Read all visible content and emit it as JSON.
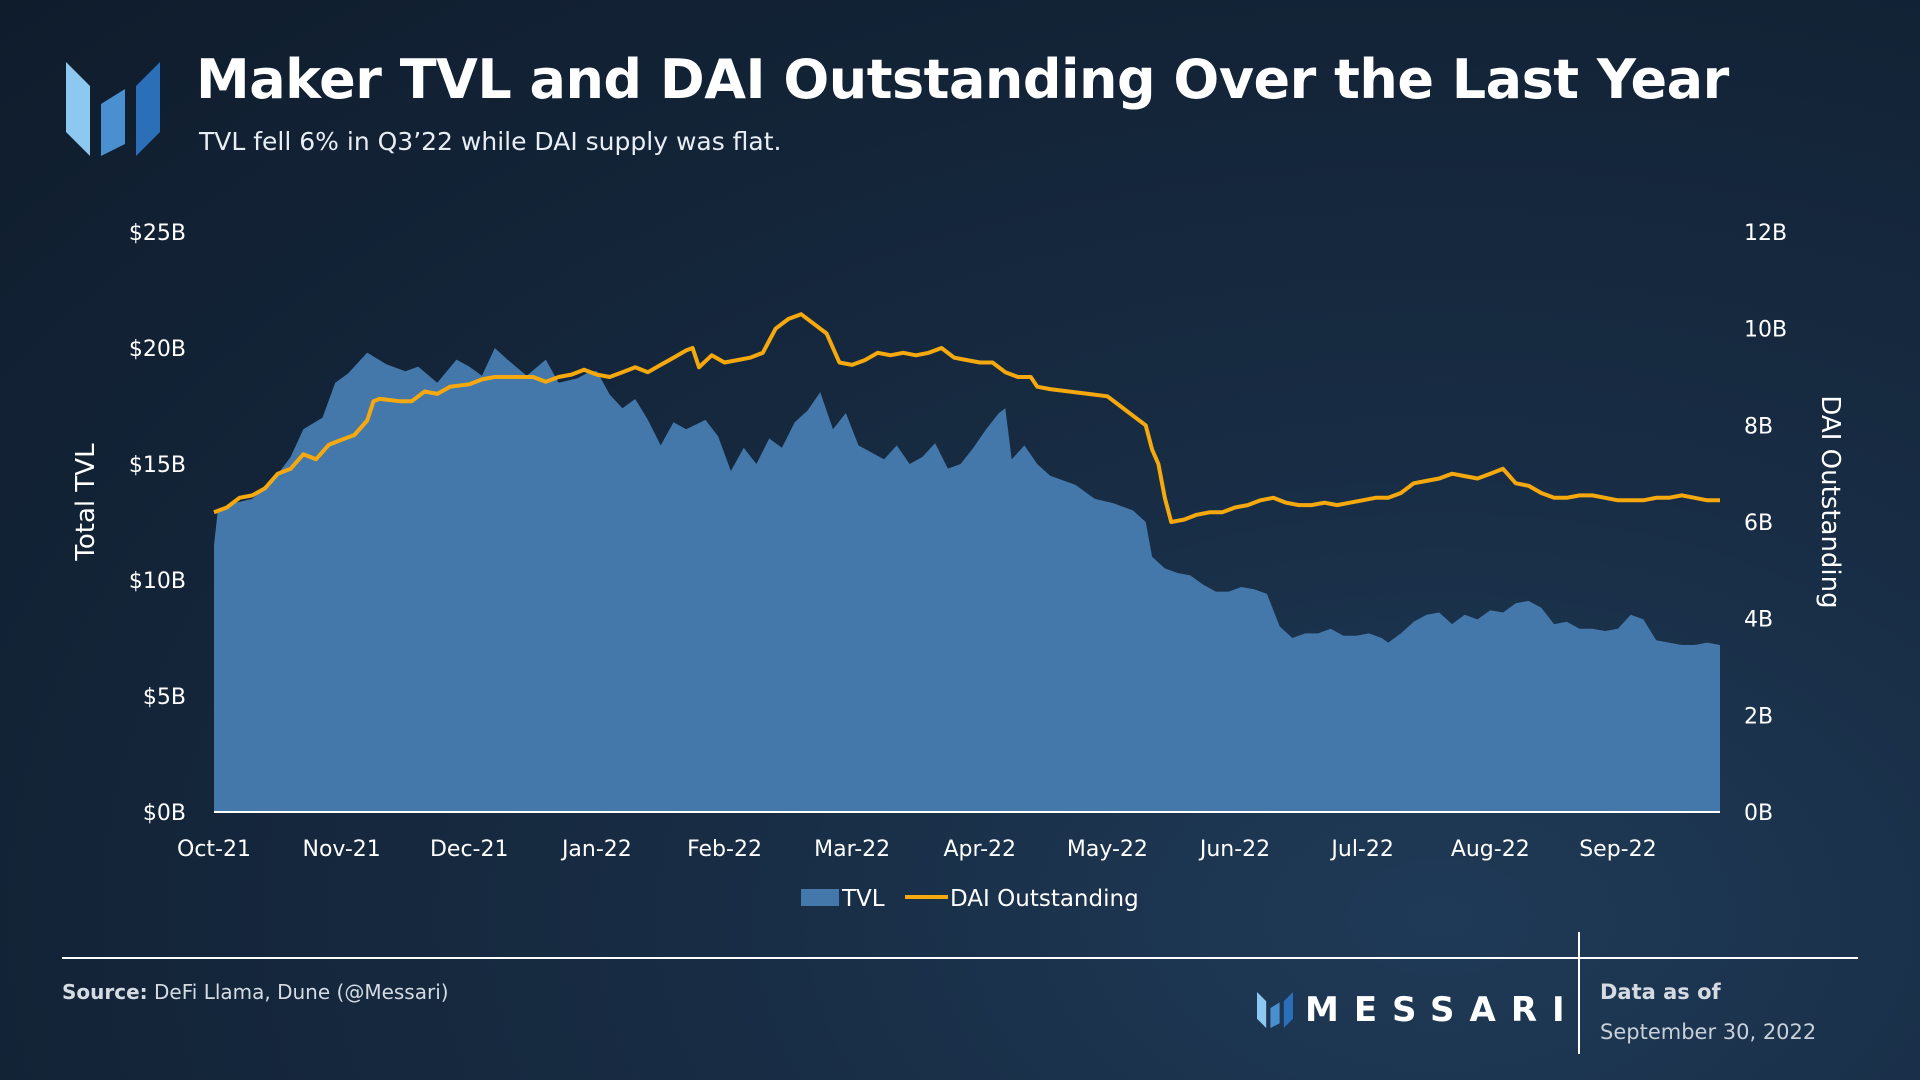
{
  "header": {
    "title": "Maker TVL and DAI Outstanding Over the Last Year",
    "subtitle": "TVL fell 6% in Q3’22 while DAI supply was flat."
  },
  "footer": {
    "source_label": "Source:",
    "source_text": "DeFi Llama, Dune (@Messari)",
    "brand": "MESSARI",
    "as_of_label": "Data as of",
    "as_of_date": "September 30, 2022"
  },
  "colors": {
    "tvl_fill": "#4477aa",
    "dai_line": "#f6a90e",
    "logo_light": "#8cc8f0",
    "logo_mid": "#4a90d0",
    "logo_dark": "#2a6fb8"
  },
  "chart_data": {
    "type": "area+line",
    "x_labels": [
      "Oct-21",
      "Nov-21",
      "Dec-21",
      "Jan-22",
      "Feb-22",
      "Mar-22",
      "Apr-22",
      "May-22",
      "Jun-22",
      "Jul-22",
      "Aug-22",
      "Sep-22"
    ],
    "x_range": [
      0,
      11.8
    ],
    "y_left": {
      "label": "Total TVL",
      "ticks": [
        "$0B",
        "$5B",
        "$10B",
        "$15B",
        "$20B",
        "$25B"
      ],
      "range": [
        0,
        25
      ]
    },
    "y_right": {
      "label": "DAI Outstanding",
      "ticks": [
        "0B",
        "2B",
        "4B",
        "6B",
        "8B",
        "10B",
        "12B"
      ],
      "range": [
        0,
        12
      ]
    },
    "legend": [
      "TVL",
      "DAI Outstanding"
    ],
    "legend_position": "bottom-center",
    "grid": false,
    "series": [
      {
        "name": "TVL",
        "type": "area",
        "axis": "left",
        "unit": "B USD",
        "points": [
          [
            0,
            11.5
          ],
          [
            0.03,
            13
          ],
          [
            0.15,
            13.3
          ],
          [
            0.3,
            13.5
          ],
          [
            0.45,
            14.2
          ],
          [
            0.6,
            15.3
          ],
          [
            0.7,
            16.5
          ],
          [
            0.85,
            17
          ],
          [
            0.95,
            18.5
          ],
          [
            1.05,
            18.9
          ],
          [
            1.2,
            19.8
          ],
          [
            1.35,
            19.3
          ],
          [
            1.5,
            19
          ],
          [
            1.6,
            19.2
          ],
          [
            1.75,
            18.5
          ],
          [
            1.9,
            19.5
          ],
          [
            2.0,
            19.2
          ],
          [
            2.1,
            18.8
          ],
          [
            2.2,
            20
          ],
          [
            2.3,
            19.5
          ],
          [
            2.45,
            18.8
          ],
          [
            2.6,
            19.5
          ],
          [
            2.7,
            18.5
          ],
          [
            2.85,
            18.7
          ],
          [
            2.95,
            19
          ],
          [
            3.0,
            19
          ],
          [
            3.1,
            18
          ],
          [
            3.2,
            17.4
          ],
          [
            3.3,
            17.8
          ],
          [
            3.4,
            16.9
          ],
          [
            3.5,
            15.8
          ],
          [
            3.6,
            16.8
          ],
          [
            3.7,
            16.5
          ],
          [
            3.85,
            16.9
          ],
          [
            3.95,
            16.2
          ],
          [
            4.05,
            14.7
          ],
          [
            4.15,
            15.7
          ],
          [
            4.25,
            15
          ],
          [
            4.35,
            16.1
          ],
          [
            4.45,
            15.7
          ],
          [
            4.55,
            16.8
          ],
          [
            4.65,
            17.3
          ],
          [
            4.75,
            18.1
          ],
          [
            4.85,
            16.5
          ],
          [
            4.95,
            17.2
          ],
          [
            5.05,
            15.8
          ],
          [
            5.15,
            15.5
          ],
          [
            5.25,
            15.2
          ],
          [
            5.35,
            15.8
          ],
          [
            5.45,
            15
          ],
          [
            5.55,
            15.3
          ],
          [
            5.65,
            15.9
          ],
          [
            5.75,
            14.8
          ],
          [
            5.85,
            15
          ],
          [
            5.95,
            15.7
          ],
          [
            6.05,
            16.5
          ],
          [
            6.15,
            17.2
          ],
          [
            6.2,
            17.4
          ],
          [
            6.25,
            15.2
          ],
          [
            6.35,
            15.8
          ],
          [
            6.45,
            15
          ],
          [
            6.55,
            14.5
          ],
          [
            6.65,
            14.3
          ],
          [
            6.75,
            14.1
          ],
          [
            6.9,
            13.5
          ],
          [
            7.05,
            13.3
          ],
          [
            7.2,
            13
          ],
          [
            7.3,
            12.5
          ],
          [
            7.35,
            11
          ],
          [
            7.45,
            10.5
          ],
          [
            7.55,
            10.3
          ],
          [
            7.65,
            10.2
          ],
          [
            7.75,
            9.8
          ],
          [
            7.85,
            9.5
          ],
          [
            7.95,
            9.5
          ],
          [
            8.05,
            9.7
          ],
          [
            8.15,
            9.6
          ],
          [
            8.25,
            9.4
          ],
          [
            8.35,
            8
          ],
          [
            8.45,
            7.5
          ],
          [
            8.55,
            7.7
          ],
          [
            8.65,
            7.7
          ],
          [
            8.75,
            7.9
          ],
          [
            8.85,
            7.6
          ],
          [
            8.95,
            7.6
          ],
          [
            9.05,
            7.7
          ],
          [
            9.15,
            7.5
          ],
          [
            9.2,
            7.3
          ],
          [
            9.3,
            7.7
          ],
          [
            9.4,
            8.2
          ],
          [
            9.5,
            8.5
          ],
          [
            9.6,
            8.6
          ],
          [
            9.7,
            8.1
          ],
          [
            9.8,
            8.5
          ],
          [
            9.9,
            8.3
          ],
          [
            10.0,
            8.7
          ],
          [
            10.1,
            8.6
          ],
          [
            10.2,
            9
          ],
          [
            10.3,
            9.1
          ],
          [
            10.4,
            8.8
          ],
          [
            10.5,
            8.1
          ],
          [
            10.6,
            8.2
          ],
          [
            10.7,
            7.9
          ],
          [
            10.8,
            7.9
          ],
          [
            10.9,
            7.8
          ],
          [
            11.0,
            7.9
          ],
          [
            11.1,
            8.5
          ],
          [
            11.2,
            8.3
          ],
          [
            11.3,
            7.4
          ],
          [
            11.4,
            7.3
          ],
          [
            11.5,
            7.2
          ],
          [
            11.6,
            7.2
          ],
          [
            11.7,
            7.3
          ],
          [
            11.8,
            7.2
          ]
        ]
      },
      {
        "name": "DAI Outstanding",
        "type": "line",
        "axis": "right",
        "unit": "B",
        "points": [
          [
            0,
            6.2
          ],
          [
            0.1,
            6.3
          ],
          [
            0.2,
            6.5
          ],
          [
            0.3,
            6.55
          ],
          [
            0.4,
            6.7
          ],
          [
            0.5,
            7.0
          ],
          [
            0.6,
            7.1
          ],
          [
            0.7,
            7.4
          ],
          [
            0.8,
            7.3
          ],
          [
            0.9,
            7.6
          ],
          [
            1.0,
            7.7
          ],
          [
            1.1,
            7.8
          ],
          [
            1.2,
            8.1
          ],
          [
            1.25,
            8.5
          ],
          [
            1.3,
            8.55
          ],
          [
            1.45,
            8.5
          ],
          [
            1.55,
            8.5
          ],
          [
            1.65,
            8.7
          ],
          [
            1.75,
            8.65
          ],
          [
            1.85,
            8.8
          ],
          [
            2.0,
            8.85
          ],
          [
            2.1,
            8.95
          ],
          [
            2.2,
            9.0
          ],
          [
            2.35,
            9.0
          ],
          [
            2.5,
            9.0
          ],
          [
            2.6,
            8.9
          ],
          [
            2.7,
            9.0
          ],
          [
            2.8,
            9.05
          ],
          [
            2.9,
            9.15
          ],
          [
            3.0,
            9.05
          ],
          [
            3.1,
            9.0
          ],
          [
            3.2,
            9.1
          ],
          [
            3.3,
            9.2
          ],
          [
            3.4,
            9.1
          ],
          [
            3.5,
            9.25
          ],
          [
            3.6,
            9.4
          ],
          [
            3.7,
            9.55
          ],
          [
            3.75,
            9.6
          ],
          [
            3.8,
            9.2
          ],
          [
            3.9,
            9.45
          ],
          [
            4.0,
            9.3
          ],
          [
            4.1,
            9.35
          ],
          [
            4.2,
            9.4
          ],
          [
            4.3,
            9.5
          ],
          [
            4.4,
            10.0
          ],
          [
            4.5,
            10.2
          ],
          [
            4.6,
            10.3
          ],
          [
            4.7,
            10.1
          ],
          [
            4.8,
            9.9
          ],
          [
            4.85,
            9.6
          ],
          [
            4.9,
            9.3
          ],
          [
            5.0,
            9.25
          ],
          [
            5.1,
            9.35
          ],
          [
            5.2,
            9.5
          ],
          [
            5.3,
            9.45
          ],
          [
            5.4,
            9.5
          ],
          [
            5.5,
            9.45
          ],
          [
            5.6,
            9.5
          ],
          [
            5.7,
            9.6
          ],
          [
            5.8,
            9.4
          ],
          [
            5.9,
            9.35
          ],
          [
            6.0,
            9.3
          ],
          [
            6.1,
            9.3
          ],
          [
            6.2,
            9.1
          ],
          [
            6.3,
            9.0
          ],
          [
            6.4,
            9.0
          ],
          [
            6.45,
            8.8
          ],
          [
            6.55,
            8.75
          ],
          [
            6.7,
            8.7
          ],
          [
            6.85,
            8.65
          ],
          [
            7.0,
            8.6
          ],
          [
            7.1,
            8.4
          ],
          [
            7.2,
            8.2
          ],
          [
            7.3,
            8.0
          ],
          [
            7.35,
            7.5
          ],
          [
            7.4,
            7.2
          ],
          [
            7.45,
            6.5
          ],
          [
            7.5,
            6.0
          ],
          [
            7.6,
            6.05
          ],
          [
            7.7,
            6.15
          ],
          [
            7.8,
            6.2
          ],
          [
            7.9,
            6.2
          ],
          [
            8.0,
            6.3
          ],
          [
            8.1,
            6.35
          ],
          [
            8.2,
            6.45
          ],
          [
            8.3,
            6.5
          ],
          [
            8.4,
            6.4
          ],
          [
            8.5,
            6.35
          ],
          [
            8.6,
            6.35
          ],
          [
            8.7,
            6.4
          ],
          [
            8.8,
            6.35
          ],
          [
            8.9,
            6.4
          ],
          [
            9.0,
            6.45
          ],
          [
            9.1,
            6.5
          ],
          [
            9.2,
            6.5
          ],
          [
            9.3,
            6.6
          ],
          [
            9.4,
            6.8
          ],
          [
            9.5,
            6.85
          ],
          [
            9.6,
            6.9
          ],
          [
            9.7,
            7.0
          ],
          [
            9.8,
            6.95
          ],
          [
            9.9,
            6.9
          ],
          [
            10.0,
            7.0
          ],
          [
            10.1,
            7.1
          ],
          [
            10.2,
            6.8
          ],
          [
            10.3,
            6.75
          ],
          [
            10.4,
            6.6
          ],
          [
            10.5,
            6.5
          ],
          [
            10.6,
            6.5
          ],
          [
            10.7,
            6.55
          ],
          [
            10.8,
            6.55
          ],
          [
            10.9,
            6.5
          ],
          [
            11.0,
            6.45
          ],
          [
            11.1,
            6.45
          ],
          [
            11.2,
            6.45
          ],
          [
            11.3,
            6.5
          ],
          [
            11.4,
            6.5
          ],
          [
            11.5,
            6.55
          ],
          [
            11.6,
            6.5
          ],
          [
            11.7,
            6.45
          ],
          [
            11.8,
            6.45
          ]
        ]
      }
    ]
  }
}
